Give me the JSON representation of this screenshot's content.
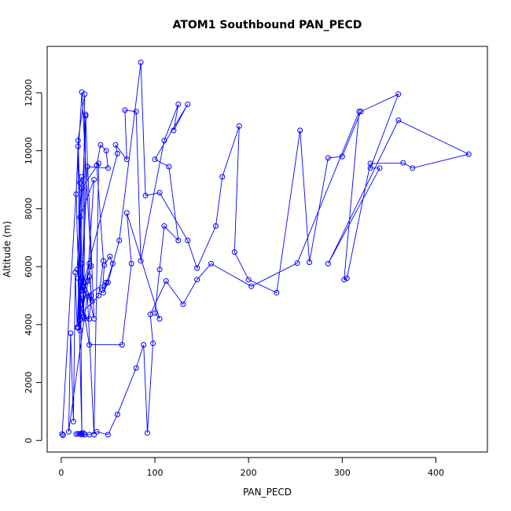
{
  "chart_data": {
    "type": "line",
    "title": "ATOM1 Southbound PAN_PECD",
    "xlabel": "PAN_PECD",
    "ylabel": "Altitude (m)",
    "xlim": [
      -15,
      455
    ],
    "ylim": [
      -400,
      13600
    ],
    "xticks": [
      0,
      100,
      200,
      300,
      400
    ],
    "yticks": [
      0,
      2000,
      4000,
      6000,
      8000,
      10000,
      12000
    ],
    "series_color": "#0000ff",
    "series": [
      {
        "x": [
          2,
          1,
          22,
          32,
          23,
          25,
          18,
          24,
          26,
          17,
          15,
          13,
          10,
          8,
          28,
          35,
          40,
          22,
          20,
          18,
          16,
          20,
          22,
          25,
          28,
          35,
          20,
          22,
          18,
          25,
          30,
          32,
          30,
          18,
          20,
          22,
          17,
          24,
          26,
          35,
          30,
          22,
          22,
          33,
          30,
          22,
          40,
          45,
          38,
          42,
          48,
          50,
          28,
          22,
          60,
          58,
          70,
          68,
          80,
          85,
          110,
          125,
          120,
          135,
          100,
          115,
          125,
          110,
          105,
          100,
          105,
          70,
          75,
          65,
          30,
          22,
          48,
          44,
          46,
          52,
          55,
          45,
          50,
          62,
          85,
          90,
          105,
          135,
          145,
          165,
          172,
          190,
          185,
          200,
          230,
          255,
          265,
          285,
          300,
          320,
          360,
          330,
          340,
          285,
          360,
          435,
          375,
          365,
          330,
          305,
          302,
          318,
          252,
          203,
          160,
          145,
          130,
          112,
          95,
          98,
          92,
          88,
          80,
          60,
          50,
          38,
          30,
          25,
          22,
          20,
          18,
          22,
          16,
          24
        ],
        "y": [
          180,
          220,
          12020,
          6020,
          5150,
          11950,
          10350,
          4250,
          11250,
          3900,
          5800,
          650,
          3700,
          300,
          5000,
          200,
          9560,
          8700,
          4150,
          10150,
          8500,
          3800,
          6100,
          5200,
          5500,
          9000,
          7700,
          250,
          5600,
          4200,
          4200,
          5000,
          6100,
          3900,
          8900,
          9100,
          5900,
          4300,
          11200,
          4200,
          4950,
          5200,
          5600,
          4800,
          5650,
          4400,
          5000,
          6200,
          9500,
          10200,
          10000,
          9400,
          9450,
          5200,
          9900,
          10200,
          9700,
          11400,
          11350,
          6200,
          10350,
          11600,
          10700,
          11600,
          9700,
          9450,
          6900,
          7400,
          5900,
          4400,
          4200,
          7850,
          6100,
          3300,
          3300,
          4900,
          5450,
          5200,
          6050,
          6350,
          6100,
          5100,
          5450,
          6900,
          13050,
          8450,
          8550,
          6900,
          5950,
          7400,
          9100,
          10850,
          6500,
          5550,
          5100,
          10700,
          6150,
          9750,
          9800,
          11350,
          11950,
          9400,
          9400,
          6100,
          11050,
          9880,
          9400,
          9580,
          9560,
          5600,
          5550,
          11350,
          6120,
          5320,
          6100,
          5550,
          4700,
          5500,
          4350,
          3350,
          260,
          3300,
          2500,
          900,
          200,
          300,
          200,
          200,
          250,
          220,
          230,
          200,
          220,
          250
        ]
      }
    ]
  }
}
